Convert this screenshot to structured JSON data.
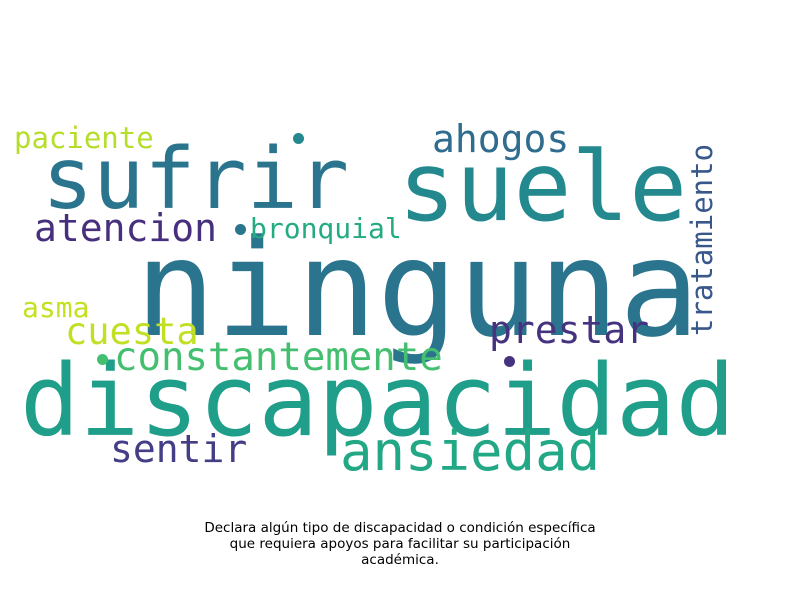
{
  "wordcloud": {
    "words": [
      {
        "key": "ninguna",
        "text": "ninguna",
        "color": "#2b748e"
      },
      {
        "key": "discapacidad",
        "text": "discapacidad",
        "color": "#1f9e89"
      },
      {
        "key": "sufrir",
        "text": "sufrir",
        "color": "#2b748e"
      },
      {
        "key": "suele",
        "text": "suele",
        "color": "#23898e"
      },
      {
        "key": "ansiedad",
        "text": "ansiedad",
        "color": "#22a884"
      },
      {
        "key": "constantemente",
        "text": "constantemente",
        "color": "#44bf70"
      },
      {
        "key": "ahogos",
        "text": "ahogos",
        "color": "#2f6c8e"
      },
      {
        "key": "atencion",
        "text": "atencion",
        "color": "#472f7d"
      },
      {
        "key": "prestar",
        "text": "prestar",
        "color": "#46337f"
      },
      {
        "key": "sentir",
        "text": "sentir",
        "color": "#433e85"
      },
      {
        "key": "cuesta",
        "text": "cuesta",
        "color": "#c2df23"
      },
      {
        "key": "tratamiento",
        "text": "tratamiento",
        "color": "#38588c"
      },
      {
        "key": "paciente",
        "text": "paciente",
        "color": "#b5de2b"
      },
      {
        "key": "bronquial",
        "text": "bronquial",
        "color": "#25ab82"
      },
      {
        "key": "asma",
        "text": "asma",
        "color": "#c5e021"
      }
    ],
    "dot_colors": {
      "dot1": "#2b748e",
      "dot2": "#23898e",
      "dot3": "#44bf70",
      "dot4": "#46337f"
    }
  },
  "caption": {
    "line1": "Declara algún tipo de discapacidad o condición específica",
    "line2": "que requiera apoyos para facilitar su participación",
    "line3": "académica."
  }
}
